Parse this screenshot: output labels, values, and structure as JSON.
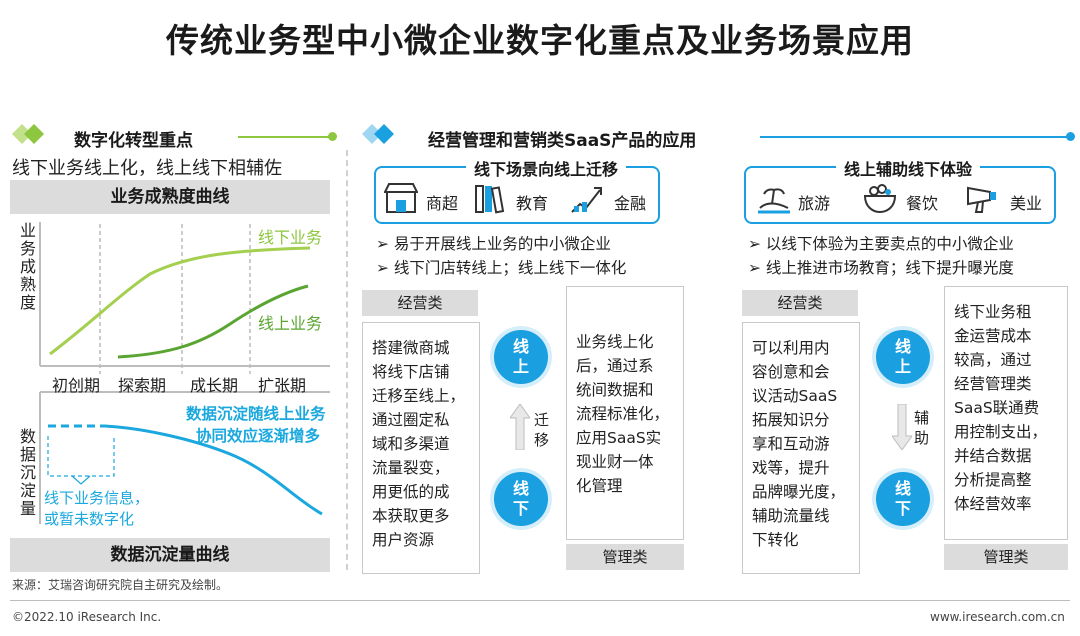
{
  "title": "传统业务型中小微企业数字化重点及业务场景应用",
  "left": {
    "heading": "数字化转型重点",
    "subtitle": "线下业务线上化，线上线下相辅佐",
    "top_bar": "业务成熟度曲线",
    "y_axis_top": "业务成熟度",
    "offline_label": "线下业务",
    "online_label": "线上业务",
    "phases": [
      "初创期",
      "探索期",
      "成长期",
      "扩张期"
    ],
    "y_axis_bottom": "数据沉淀量",
    "annotation": [
      "数据沉淀随线上业务",
      "协同效应逐渐增多"
    ],
    "note": [
      "线下业务信息，",
      "或暂未数字化"
    ],
    "bottom_bar": "数据沉淀量曲线"
  },
  "right": {
    "heading": "经营管理和营销类SaaS产品的应用",
    "panel1": {
      "title": "线下场景向线上迁移",
      "items": [
        {
          "icon": "store-icon",
          "label": "商超"
        },
        {
          "icon": "books-icon",
          "label": "教育"
        },
        {
          "icon": "finance-icon",
          "label": "金融"
        }
      ],
      "bullets": [
        "易于开展线上业务的中小微企业",
        "线下门店转线上；线上线下一体化"
      ],
      "tag_top": "经营类",
      "left_box": [
        "搭建微商城",
        "将线下店铺",
        "迁移至线上，",
        "通过圈定私",
        "域和多渠道",
        "流量裂变，",
        "用更低的成",
        "本获取更多",
        "用户资源"
      ],
      "circle_top": [
        "线",
        "上"
      ],
      "circle_bottom": [
        "线",
        "下"
      ],
      "arrow_label": [
        "迁",
        "移"
      ],
      "right_box": [
        "业务线上化",
        "后，通过系",
        "统间数据和",
        "流程标准化，",
        "应用SaaS实",
        "现业财一体",
        "化管理"
      ],
      "tag_bottom": "管理类"
    },
    "panel2": {
      "title": "线上辅助线下体验",
      "items": [
        {
          "icon": "travel-icon",
          "label": "旅游"
        },
        {
          "icon": "dining-icon",
          "label": "餐饮"
        },
        {
          "icon": "hairdryer-icon",
          "label": "美业"
        }
      ],
      "bullets": [
        "以线下体验为主要卖点的中小微企业",
        "线上推进市场教育；线下提升曝光度"
      ],
      "tag_top": "经营类",
      "left_box": [
        "可以利用内",
        "容创意和会",
        "议活动SaaS",
        "拓展知识分",
        "享和互动游",
        "戏等，提升",
        "品牌曝光度，",
        "辅助流量线",
        "下转化"
      ],
      "circle_top": [
        "线",
        "上"
      ],
      "circle_bottom": [
        "线",
        "下"
      ],
      "arrow_label": [
        "辅",
        "助"
      ],
      "right_box": [
        "线下业务租",
        "金运营成本",
        "较高，通过",
        "经营管理类",
        "SaaS联通费",
        "用控制支出，",
        "并结合数据",
        "分析提高整",
        "体经营效率"
      ],
      "tag_bottom": "管理类"
    }
  },
  "source": "来源：艾瑞咨询研究院自主研究及绘制。",
  "copyright": "©2022.10 iResearch Inc.",
  "website": "www.iresearch.com.cn",
  "colors": {
    "accent_blue": "#1a9fe0",
    "accent_green": "#8dc63f",
    "dark_green": "#5aa532",
    "cyan_curve": "#1aa8de"
  }
}
